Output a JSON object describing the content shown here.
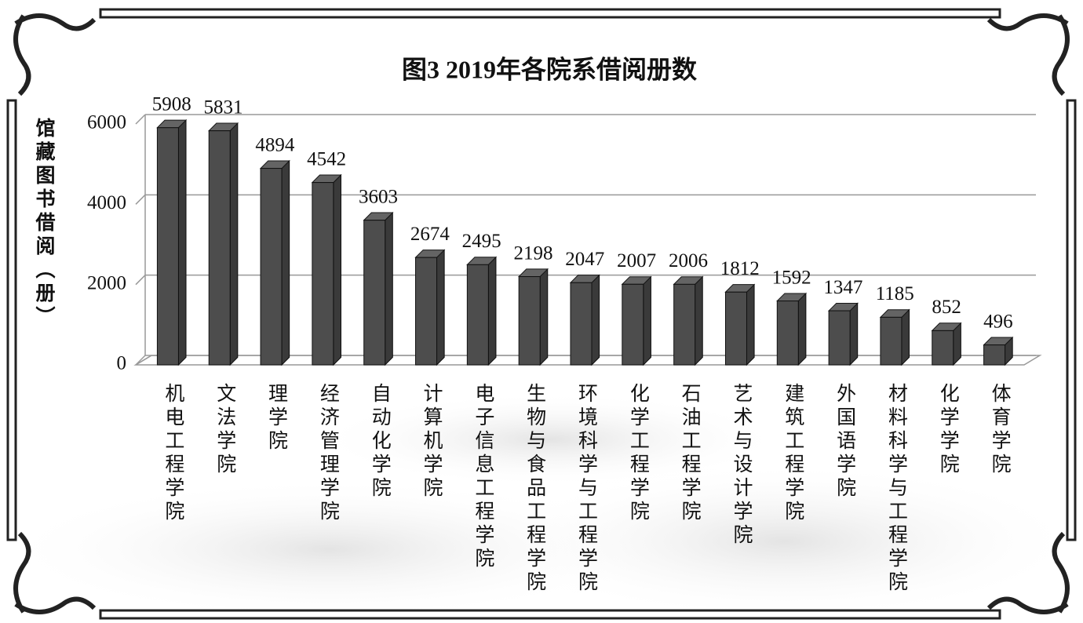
{
  "chart_data": {
    "type": "bar3d",
    "title": "图3 2019年各院系借阅册数",
    "y_label": "馆藏图书借阅（册）",
    "categories": [
      "机电工程学院",
      "文法学院",
      "理学院",
      "经济管理学院",
      "自动化学院",
      "计算机学院",
      "电子信息工程学院",
      "生物与食品工程学院",
      "环境科学与工程学院",
      "化学工程学院",
      "石油工程学院",
      "艺术与设计学院",
      "建筑工程学院",
      "外国语学院",
      "材料科学与工程学院",
      "化学学院",
      "体育学院"
    ],
    "values": [
      5908,
      5831,
      4894,
      4542,
      3603,
      2674,
      2495,
      2198,
      2047,
      2007,
      2006,
      1812,
      1592,
      1347,
      1185,
      852,
      496
    ],
    "color": "#4d4d4d",
    "ylim": [
      0,
      6000
    ],
    "yticks": [
      0,
      2000,
      4000,
      6000
    ],
    "grid": true
  }
}
